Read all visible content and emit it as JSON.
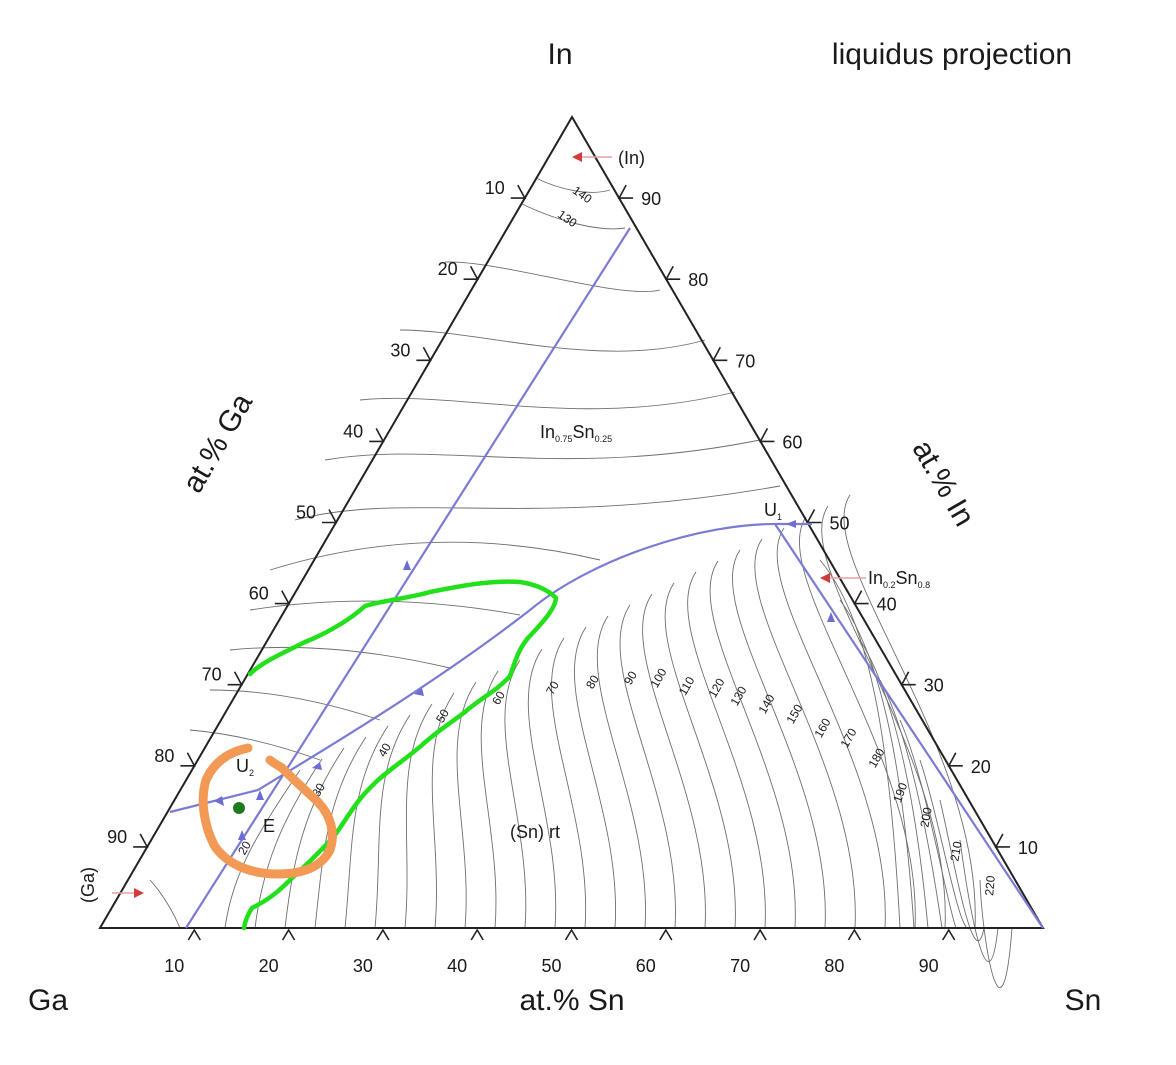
{
  "title": "liquidus projection",
  "corners": {
    "top": "In",
    "left": "Ga",
    "right": "Sn"
  },
  "axes": {
    "left": {
      "title": "at.% Ga",
      "ticks": [
        "10",
        "20",
        "30",
        "40",
        "50",
        "60",
        "70",
        "80",
        "90"
      ]
    },
    "right": {
      "title": "at.% In",
      "ticks": [
        "90",
        "80",
        "70",
        "60",
        "50",
        "40",
        "30",
        "20",
        "10"
      ]
    },
    "bottom": {
      "title": "at.% Sn",
      "ticks": [
        "10",
        "20",
        "30",
        "40",
        "50",
        "60",
        "70",
        "80",
        "90"
      ]
    }
  },
  "phases": {
    "in": "(In)",
    "ga": "(Ga)",
    "sn": "(Sn) rt",
    "in75_base": "In",
    "in75_sub1": "0.75",
    "in75_mid": "Sn",
    "in75_sub2": "0.25",
    "in02_base": "In",
    "in02_sub1": "0.2",
    "in02_mid": "Sn",
    "in02_sub2": "0.8"
  },
  "points": {
    "u1_base": "U",
    "u1_sub": "1",
    "u2_base": "U",
    "u2_sub": "2",
    "e": "E"
  },
  "isotherms": [
    "140",
    "130",
    "20",
    "30",
    "40",
    "50",
    "60",
    "70",
    "80",
    "90",
    "100",
    "110",
    "120",
    "130",
    "140",
    "150",
    "160",
    "170",
    "180",
    "190",
    "200",
    "210",
    "220"
  ],
  "colors": {
    "valley": "#7b7bd6",
    "green_annotation": "#22e01a",
    "orange_annotation": "#f29a55",
    "dot": "#1f7a1f",
    "arrow": "#d23c3c"
  }
}
